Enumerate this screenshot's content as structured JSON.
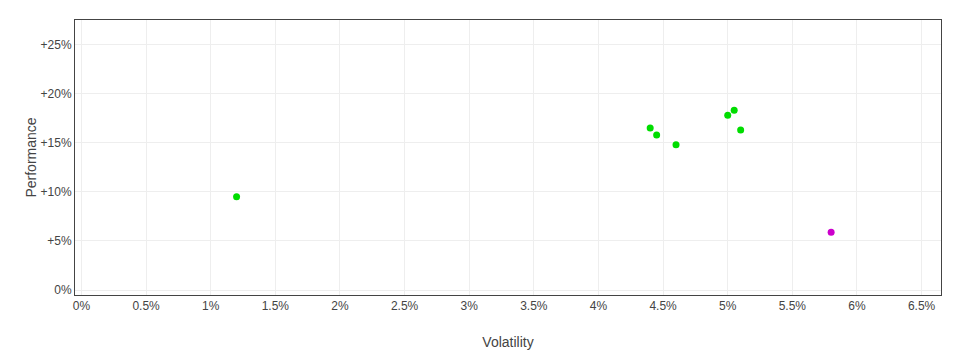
{
  "chart_data": {
    "type": "scatter",
    "xlabel": "Volatility",
    "ylabel": "Performance",
    "series": [
      {
        "color": "#00dd00",
        "x": [
          0.012,
          0.044,
          0.0445,
          0.046,
          0.05,
          0.0505,
          0.051
        ],
        "values": [
          0.095,
          0.165,
          0.158,
          0.148,
          0.178,
          0.183,
          0.163
        ]
      },
      {
        "color": "#cc00cc",
        "x": [
          0.058
        ],
        "values": [
          0.059
        ]
      }
    ],
    "xlim": [
      -0.0005,
      0.0665
    ],
    "ylim": [
      -0.005,
      0.275
    ],
    "xticks": [
      {
        "value": 0.0,
        "label": "0%"
      },
      {
        "value": 0.005,
        "label": "0.5%"
      },
      {
        "value": 0.01,
        "label": "1%"
      },
      {
        "value": 0.015,
        "label": "1.5%"
      },
      {
        "value": 0.02,
        "label": "2%"
      },
      {
        "value": 0.025,
        "label": "2.5%"
      },
      {
        "value": 0.03,
        "label": "3%"
      },
      {
        "value": 0.035,
        "label": "3.5%"
      },
      {
        "value": 0.04,
        "label": "4%"
      },
      {
        "value": 0.045,
        "label": "4.5%"
      },
      {
        "value": 0.05,
        "label": "5%"
      },
      {
        "value": 0.055,
        "label": "5.5%"
      },
      {
        "value": 0.06,
        "label": "6%"
      },
      {
        "value": 0.065,
        "label": "6.5%"
      }
    ],
    "yticks": [
      {
        "value": 0.0,
        "label": "0%"
      },
      {
        "value": 0.05,
        "label": "+5%"
      },
      {
        "value": 0.1,
        "label": "+10%"
      },
      {
        "value": 0.15,
        "label": "+15%"
      },
      {
        "value": 0.2,
        "label": "+20%"
      },
      {
        "value": 0.25,
        "label": "+25%"
      }
    ],
    "grid": true
  }
}
